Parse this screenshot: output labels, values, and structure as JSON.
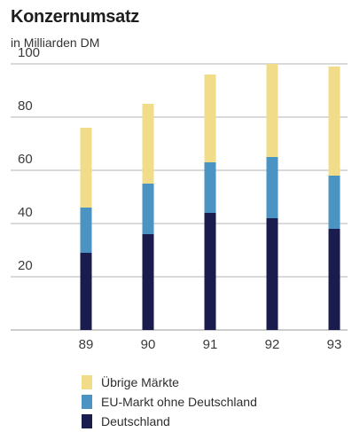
{
  "chart_data": {
    "type": "bar",
    "stacked": true,
    "title": "Konzernumsatz",
    "subtitle": "in Milliarden DM",
    "categories": [
      "89",
      "90",
      "91",
      "92",
      "93"
    ],
    "yticks": [
      20,
      40,
      60,
      80,
      100
    ],
    "ylim": [
      0,
      100
    ],
    "grid": true,
    "series": [
      {
        "name": "Deutschland",
        "color": "#1a1c4e",
        "values": [
          29,
          36,
          44,
          42,
          38
        ]
      },
      {
        "name": "EU-Markt ohne Deutschland",
        "color": "#4b93c2",
        "values": [
          17,
          19,
          19,
          23,
          20
        ]
      },
      {
        "name": "Übrige Märkte",
        "color": "#f1dc8a",
        "values": [
          30,
          30,
          33,
          35,
          41
        ]
      }
    ],
    "legend": [
      {
        "name": "Übrige Märkte",
        "color": "#f1dc8a"
      },
      {
        "name": "EU-Markt ohne Deutschland",
        "color": "#4b93c2"
      },
      {
        "name": "Deutschland",
        "color": "#1a1c4e"
      }
    ]
  }
}
